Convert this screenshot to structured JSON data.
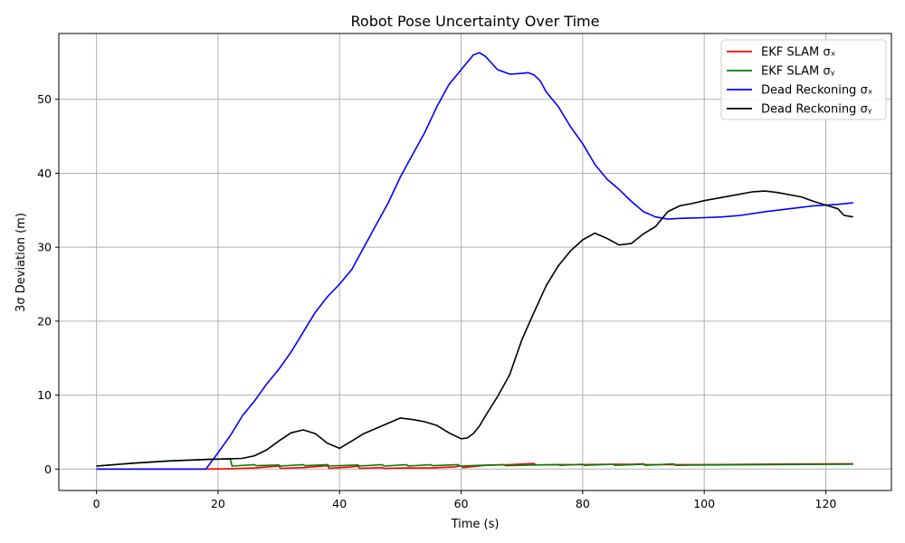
{
  "chart_data": {
    "type": "line",
    "title": "Robot Pose Uncertainty Over Time",
    "xlabel": "Time (s)",
    "ylabel": "3σ Deviation (m)",
    "xlim": [
      -6.2,
      130.8
    ],
    "ylim": [
      -2.9,
      58.9
    ],
    "xticks": [
      0,
      20,
      40,
      60,
      80,
      100,
      120
    ],
    "yticks": [
      0,
      10,
      20,
      30,
      40,
      50
    ],
    "grid": true,
    "legend_position": "top-right",
    "series": [
      {
        "name": "EKF SLAM σₓ",
        "color": "#ff0000",
        "points": [
          [
            0,
            0
          ],
          [
            18,
            0
          ],
          [
            22,
            0.05
          ],
          [
            26,
            0.15
          ],
          [
            30,
            0.4
          ],
          [
            30.3,
            0.1
          ],
          [
            34,
            0.2
          ],
          [
            38,
            0.45
          ],
          [
            38.3,
            0.1
          ],
          [
            42,
            0.3
          ],
          [
            43,
            0.4
          ],
          [
            43.3,
            0.1
          ],
          [
            47,
            0.2
          ],
          [
            47.3,
            0.1
          ],
          [
            51,
            0.15
          ],
          [
            55,
            0.15
          ],
          [
            59,
            0.3
          ],
          [
            60,
            0.45
          ],
          [
            60.3,
            0.2
          ],
          [
            64,
            0.5
          ],
          [
            68,
            0.6
          ],
          [
            72,
            0.75
          ],
          [
            72.3,
            0.55
          ],
          [
            76,
            0.6
          ],
          [
            80,
            0.6
          ],
          [
            84,
            0.65
          ],
          [
            88,
            0.65
          ],
          [
            90,
            0.7
          ],
          [
            90.3,
            0.6
          ],
          [
            95,
            0.6
          ],
          [
            100,
            0.6
          ],
          [
            105,
            0.62
          ],
          [
            110,
            0.66
          ],
          [
            115,
            0.68
          ],
          [
            120,
            0.7
          ],
          [
            124.5,
            0.72
          ]
        ]
      },
      {
        "name": "EKF SLAM σᵧ",
        "color": "#008000",
        "points": [
          [
            0,
            0.4
          ],
          [
            6,
            0.8
          ],
          [
            12,
            1.1
          ],
          [
            18,
            1.3
          ],
          [
            22,
            1.4
          ],
          [
            22.3,
            0.4
          ],
          [
            26,
            0.6
          ],
          [
            26.3,
            0.45
          ],
          [
            30,
            0.55
          ],
          [
            30.3,
            0.4
          ],
          [
            34,
            0.6
          ],
          [
            34.3,
            0.45
          ],
          [
            38,
            0.6
          ],
          [
            38.3,
            0.4
          ],
          [
            43,
            0.55
          ],
          [
            43.3,
            0.4
          ],
          [
            47,
            0.6
          ],
          [
            47.3,
            0.4
          ],
          [
            51,
            0.6
          ],
          [
            51.3,
            0.4
          ],
          [
            55,
            0.6
          ],
          [
            55.3,
            0.45
          ],
          [
            59.5,
            0.6
          ],
          [
            59.8,
            0.4
          ],
          [
            63,
            0.5
          ],
          [
            67,
            0.6
          ],
          [
            67.3,
            0.45
          ],
          [
            72,
            0.55
          ],
          [
            76,
            0.6
          ],
          [
            76.3,
            0.5
          ],
          [
            80,
            0.65
          ],
          [
            80.3,
            0.5
          ],
          [
            85,
            0.65
          ],
          [
            85.3,
            0.5
          ],
          [
            90,
            0.65
          ],
          [
            90.3,
            0.5
          ],
          [
            95,
            0.7
          ],
          [
            95.3,
            0.5
          ],
          [
            100,
            0.55
          ],
          [
            110,
            0.6
          ],
          [
            124.5,
            0.65
          ]
        ]
      },
      {
        "name": "Dead Reckoning σₓ",
        "color": "#0000ff",
        "points": [
          [
            0,
            0
          ],
          [
            18,
            0
          ],
          [
            20,
            2.2
          ],
          [
            22,
            4.5
          ],
          [
            24,
            7.2
          ],
          [
            26,
            9.2
          ],
          [
            28,
            11.5
          ],
          [
            30,
            13.5
          ],
          [
            32,
            15.8
          ],
          [
            34,
            18.5
          ],
          [
            36,
            21.2
          ],
          [
            38,
            23.3
          ],
          [
            40,
            25
          ],
          [
            42,
            27
          ],
          [
            44,
            30
          ],
          [
            46,
            33
          ],
          [
            48,
            36
          ],
          [
            50,
            39.5
          ],
          [
            52,
            42.5
          ],
          [
            54,
            45.5
          ],
          [
            56,
            49
          ],
          [
            58,
            52
          ],
          [
            60,
            54
          ],
          [
            62,
            56
          ],
          [
            63,
            56.3
          ],
          [
            64,
            55.8
          ],
          [
            66,
            54
          ],
          [
            68,
            53.4
          ],
          [
            70,
            53.5
          ],
          [
            71,
            53.6
          ],
          [
            72,
            53.3
          ],
          [
            73,
            52.5
          ],
          [
            74,
            51
          ],
          [
            76,
            49
          ],
          [
            78,
            46.3
          ],
          [
            80,
            44
          ],
          [
            82,
            41.2
          ],
          [
            84,
            39.2
          ],
          [
            86,
            37.8
          ],
          [
            88,
            36.2
          ],
          [
            90,
            34.8
          ],
          [
            92,
            34.1
          ],
          [
            94,
            33.8
          ],
          [
            96,
            33.9
          ],
          [
            98,
            33.95
          ],
          [
            100,
            34
          ],
          [
            103,
            34.1
          ],
          [
            106,
            34.3
          ],
          [
            110,
            34.8
          ],
          [
            114,
            35.2
          ],
          [
            118,
            35.6
          ],
          [
            122,
            35.8
          ],
          [
            124.5,
            36
          ]
        ]
      },
      {
        "name": "Dead Reckoning σᵧ",
        "color": "#000000",
        "points": [
          [
            0,
            0.4
          ],
          [
            6,
            0.8
          ],
          [
            12,
            1.1
          ],
          [
            18,
            1.3
          ],
          [
            22,
            1.4
          ],
          [
            24,
            1.45
          ],
          [
            26,
            1.8
          ],
          [
            28,
            2.6
          ],
          [
            30,
            3.8
          ],
          [
            32,
            4.9
          ],
          [
            34,
            5.3
          ],
          [
            36,
            4.8
          ],
          [
            38,
            3.5
          ],
          [
            40,
            2.8
          ],
          [
            42,
            3.8
          ],
          [
            44,
            4.8
          ],
          [
            46,
            5.5
          ],
          [
            48,
            6.2
          ],
          [
            50,
            6.9
          ],
          [
            52,
            6.7
          ],
          [
            54,
            6.4
          ],
          [
            56,
            5.9
          ],
          [
            58,
            4.9
          ],
          [
            60,
            4.1
          ],
          [
            61,
            4.2
          ],
          [
            62,
            4.8
          ],
          [
            63,
            5.8
          ],
          [
            64,
            7.2
          ],
          [
            66,
            9.8
          ],
          [
            68,
            12.8
          ],
          [
            70,
            17.5
          ],
          [
            72,
            21.2
          ],
          [
            74,
            24.8
          ],
          [
            76,
            27.5
          ],
          [
            78,
            29.5
          ],
          [
            80,
            31
          ],
          [
            82,
            31.9
          ],
          [
            84,
            31.2
          ],
          [
            86,
            30.3
          ],
          [
            88,
            30.5
          ],
          [
            90,
            31.8
          ],
          [
            92,
            32.8
          ],
          [
            94,
            34.8
          ],
          [
            96,
            35.6
          ],
          [
            98,
            35.9
          ],
          [
            100,
            36.3
          ],
          [
            104,
            36.9
          ],
          [
            108,
            37.5
          ],
          [
            110,
            37.6
          ],
          [
            112,
            37.4
          ],
          [
            116,
            36.8
          ],
          [
            118,
            36.2
          ],
          [
            120,
            35.7
          ],
          [
            122,
            35.2
          ],
          [
            123,
            34.3
          ],
          [
            124.5,
            34.1
          ]
        ]
      }
    ]
  }
}
